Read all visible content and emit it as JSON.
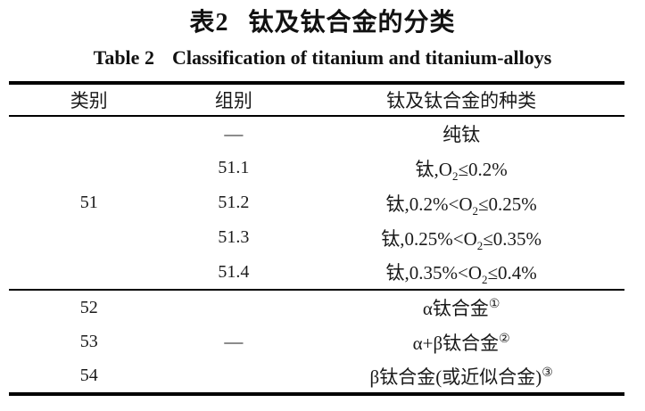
{
  "colors": {
    "background": "#ffffff",
    "text": "#1a1a1a",
    "rule": "#000000"
  },
  "title": {
    "zh_label": "表2",
    "zh_text": "钛及钛合金的分类",
    "en_label": "Table 2",
    "en_text": "Classification of titanium and titanium-alloys"
  },
  "table": {
    "headers": {
      "category": "类别",
      "group": "组别",
      "kind": "钛及钛合金的种类"
    },
    "sections": [
      {
        "category": "51",
        "rows": [
          {
            "group": "—",
            "kind": {
              "pre": "纯钛",
              "sub": "",
              "post": "",
              "sup": ""
            }
          },
          {
            "group": "51.1",
            "kind": {
              "pre": "钛,O",
              "sub": "2",
              "post": "≤0.2%",
              "sup": ""
            }
          },
          {
            "group": "51.2",
            "kind": {
              "pre": "钛,0.2%<O",
              "sub": "2",
              "post": "≤0.25%",
              "sup": ""
            }
          },
          {
            "group": "51.3",
            "kind": {
              "pre": "钛,0.25%<O",
              "sub": "2",
              "post": "≤0.35%",
              "sup": ""
            }
          },
          {
            "group": "51.4",
            "kind": {
              "pre": "钛,0.35%<O",
              "sub": "2",
              "post": "≤0.4%",
              "sup": ""
            }
          }
        ]
      },
      {
        "group": "—",
        "rows": [
          {
            "category": "52",
            "kind": {
              "pre": "α钛合金",
              "sub": "",
              "post": "",
              "sup": "①"
            }
          },
          {
            "category": "53",
            "kind": {
              "pre": "α+β钛合金",
              "sub": "",
              "post": "",
              "sup": "②"
            }
          },
          {
            "category": "54",
            "kind": {
              "pre": "β钛合金(或近似合金)",
              "sub": "",
              "post": "",
              "sup": "③"
            }
          }
        ]
      }
    ]
  }
}
